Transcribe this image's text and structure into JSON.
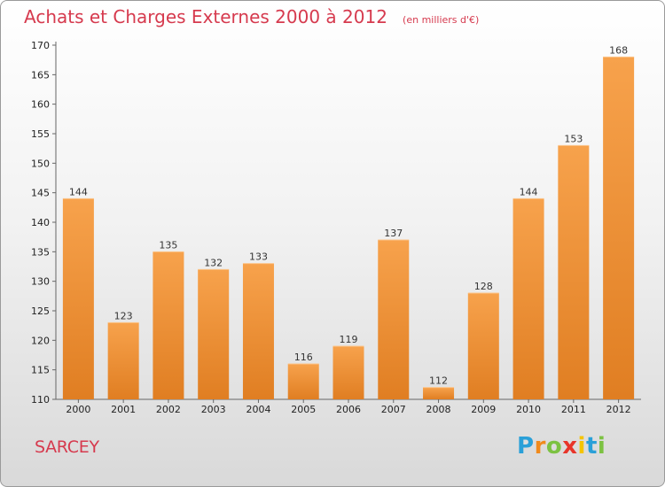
{
  "title": "Achats et Charges Externes 2000 à 2012",
  "subtitle": "(en milliers d'€)",
  "place": "SARCEY",
  "logo": {
    "text": "Proxiti",
    "letters": [
      "P",
      "r",
      "o",
      "x",
      "i",
      "t",
      "i"
    ],
    "colors": [
      "#2aa0d8",
      "#f08a1c",
      "#7cc242",
      "#e8352a",
      "#f5c400",
      "#2aa0d8",
      "#7cc242"
    ]
  },
  "colors": {
    "bar_light": "#f7a24c",
    "bar_dark": "#e07e22",
    "title": "#d63a4e"
  },
  "chart_data": {
    "type": "bar",
    "categories": [
      "2000",
      "2001",
      "2002",
      "2003",
      "2004",
      "2005",
      "2006",
      "2007",
      "2008",
      "2009",
      "2010",
      "2011",
      "2012"
    ],
    "values": [
      144,
      123,
      135,
      132,
      133,
      116,
      119,
      137,
      112,
      128,
      144,
      153,
      168
    ],
    "ylim": [
      110,
      170
    ],
    "yticks": [
      110,
      115,
      120,
      125,
      130,
      135,
      140,
      145,
      150,
      155,
      160,
      165,
      170
    ],
    "grid": false,
    "legend": "none"
  }
}
